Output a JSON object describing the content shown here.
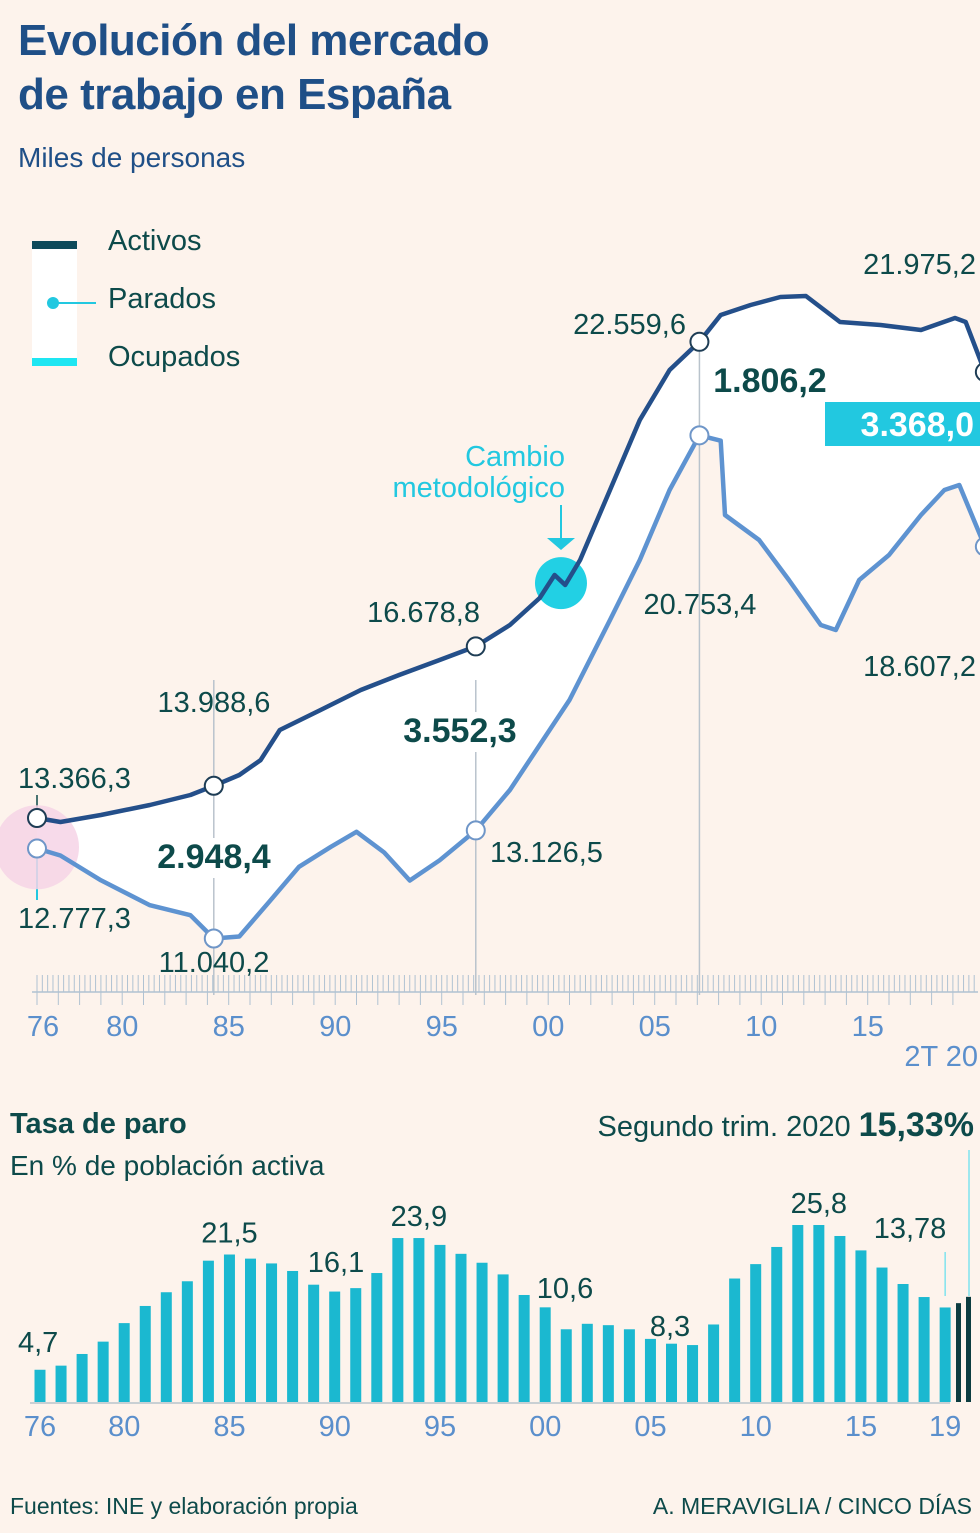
{
  "header": {
    "title_line1": "Evolución del mercado",
    "title_line2": "de trabajo en España",
    "subtitle": "Miles de personas"
  },
  "legend": {
    "activos": "Activos",
    "parados": "Parados",
    "ocupados": "Ocupados"
  },
  "colors": {
    "activos": "#244f8a",
    "ocupados": "#5e93d1",
    "parados": "#22c8e0",
    "bars": "#1bb8d0",
    "bars_current": "#0c3c40",
    "background": "#fdf3ec",
    "text": "#0d4a4a"
  },
  "annotations": {
    "cambio_line1": "Cambio",
    "cambio_line2": "metodológico"
  },
  "chart_data": [
    {
      "type": "line",
      "title": "Evolución del mercado de trabajo en España",
      "ylabel": "Miles de personas",
      "xlabel": "",
      "x_ticks": [
        "76",
        "80",
        "85",
        "90",
        "95",
        "00",
        "05",
        "10",
        "15",
        "2T 20"
      ],
      "x_tick_years": [
        1976,
        1980,
        1985,
        1990,
        1995,
        2000,
        2005,
        2010,
        2015,
        2020.5
      ],
      "xlim": [
        1975.9,
        2020.6
      ],
      "ylim": [
        10500,
        24000
      ],
      "grid": false,
      "legend_position": "top-left",
      "series": [
        {
          "name": "Activos",
          "x": [
            1976.0,
            1977.1,
            1979.0,
            1981.3,
            1983.2,
            1984.3,
            1985.5,
            1986.5,
            1987.4,
            1989.3,
            1991.2,
            1993.0,
            1994.9,
            1996.6,
            1998.2,
            1999.6,
            2000.3,
            2000.8,
            2001.5,
            2002.9,
            2004.3,
            2005.7,
            2007.1,
            2008.1,
            2009.5,
            2010.9,
            2012.1,
            2013.7,
            2015.6,
            2017.5,
            2019.1,
            2019.6,
            2020.5
          ],
          "values": [
            13366.3,
            13289,
            13424,
            13617,
            13810,
            13988.6,
            14196,
            14485,
            15065,
            15450,
            15837,
            16127,
            16416,
            16678.8,
            17092,
            17613,
            18057,
            17864,
            18347,
            19698,
            21049,
            22015,
            22559.6,
            23077,
            23270,
            23424,
            23443,
            22941,
            22883,
            22787,
            23018,
            22941,
            21975.2
          ]
        },
        {
          "name": "Ocupados",
          "x": [
            1976.0,
            1977.1,
            1979.0,
            1981.3,
            1983.2,
            1984.3,
            1985.5,
            1986.9,
            1988.3,
            1989.8,
            1991.0,
            1992.3,
            1993.5,
            1994.9,
            1996.6,
            1998.2,
            1999.6,
            2001.0,
            2002.9,
            2004.3,
            2005.7,
            2007.1,
            2008.1,
            2008.3,
            2009.9,
            2011.3,
            2012.8,
            2013.5,
            2014.6,
            2016.0,
            2017.5,
            2018.6,
            2019.3,
            2020.5
          ],
          "values": [
            12777.3,
            12642,
            12163,
            11683,
            11490,
            11040.2,
            11078,
            11749,
            12425,
            12810,
            13100,
            12700,
            12160,
            12550,
            13126.5,
            13906,
            14775,
            15644,
            17188,
            18347,
            19698,
            20753.4,
            20650,
            19216,
            18733,
            17960,
            17092,
            16996,
            17960,
            18443,
            19216,
            19698,
            19795,
            18607.2
          ]
        }
      ],
      "point_labels": [
        {
          "series": "Activos",
          "x": 1976.0,
          "text": "13.366,3"
        },
        {
          "series": "Ocupados",
          "x": 1976.0,
          "text": "12.777,3"
        },
        {
          "series": "Activos",
          "x": 1984.3,
          "text": "13.988,6"
        },
        {
          "series": "Ocupados",
          "x": 1984.3,
          "text": "11.040,2"
        },
        {
          "series": "Activos",
          "x": 1996.6,
          "text": "16.678,8"
        },
        {
          "series": "Ocupados",
          "x": 1996.6,
          "text": "13.126,5"
        },
        {
          "series": "Activos",
          "x": 2007.1,
          "text": "22.559,6"
        },
        {
          "series": "Ocupados",
          "x": 2007.1,
          "text": "20.753,4"
        },
        {
          "series": "Activos",
          "x": 2020.5,
          "text": "21.975,2"
        },
        {
          "series": "Ocupados",
          "x": 2020.5,
          "text": "18.607,2"
        }
      ],
      "parados_labels": [
        {
          "x": 1984.3,
          "text": "2.948,4"
        },
        {
          "x": 1996.6,
          "text": "3.552,3"
        },
        {
          "x": 2007.1,
          "text": "1.806,2"
        },
        {
          "x": 2020.5,
          "text": "3.368,0",
          "highlight": true
        }
      ]
    },
    {
      "type": "bar",
      "title": "Tasa de paro",
      "subtitle": "En % de población activa",
      "ylabel": "%",
      "ylim": [
        0,
        27
      ],
      "x_ticks": [
        "76",
        "80",
        "85",
        "90",
        "95",
        "00",
        "05",
        "10",
        "15",
        "19"
      ],
      "categories": [
        "1976",
        "1977",
        "1978",
        "1979",
        "1980",
        "1981",
        "1982",
        "1983",
        "1984",
        "1985",
        "1986",
        "1987",
        "1988",
        "1989",
        "1990",
        "1991",
        "1992",
        "1993",
        "1994",
        "1995",
        "1996",
        "1997",
        "1998",
        "1999",
        "2000",
        "2001",
        "2002",
        "2003",
        "2004",
        "2005",
        "2006",
        "2007",
        "2008",
        "2009",
        "2010",
        "2011",
        "2012",
        "2013",
        "2014",
        "2015",
        "2016",
        "2017",
        "2018",
        "2019",
        "2020 T1",
        "2020 T2"
      ],
      "values": [
        4.7,
        5.3,
        7.0,
        8.8,
        11.5,
        14.0,
        16.0,
        17.6,
        20.6,
        21.5,
        20.9,
        20.2,
        19.1,
        17.1,
        16.1,
        16.6,
        18.8,
        23.9,
        23.9,
        22.9,
        21.6,
        20.3,
        18.6,
        15.6,
        13.8,
        10.6,
        11.4,
        11.2,
        10.6,
        9.2,
        8.5,
        8.3,
        11.3,
        18.0,
        20.1,
        22.6,
        25.8,
        25.8,
        24.2,
        22.1,
        19.6,
        17.2,
        15.3,
        13.78,
        14.41,
        15.33
      ],
      "bar_labels": [
        {
          "category": "1976",
          "text": "4,7"
        },
        {
          "category": "1985",
          "text": "21,5"
        },
        {
          "category": "1990",
          "text": "16,1"
        },
        {
          "category": "1994",
          "text": "23,9"
        },
        {
          "category": "2001",
          "text": "10,6"
        },
        {
          "category": "2007",
          "text": "8,3"
        },
        {
          "category": "2013",
          "text": "25,8"
        },
        {
          "category": "2019",
          "text": "13,78"
        }
      ],
      "highlight_label": "Segundo trim. 2020",
      "highlight_value": "15,33%"
    }
  ],
  "footer": {
    "source": "Fuentes: INE y elaboración propia",
    "credit": "A. MERAVIGLIA / CINCO DÍAS"
  }
}
